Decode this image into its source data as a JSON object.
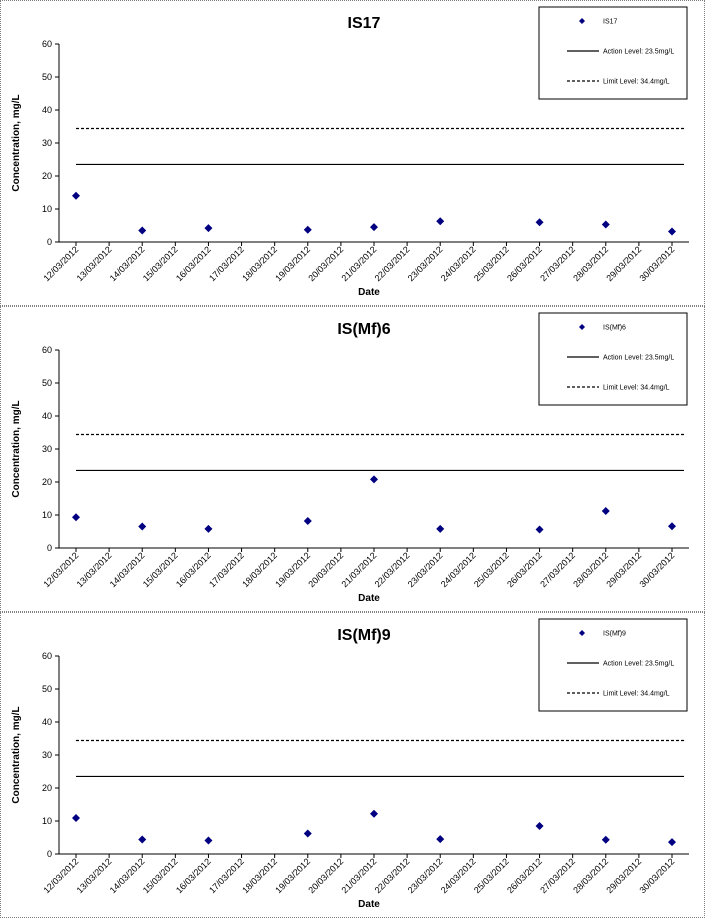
{
  "colors": {
    "marker": "#000080",
    "axis": "#000000",
    "action_line": "#000000",
    "limit_line": "#000000"
  },
  "chart_data": [
    {
      "type": "scatter",
      "title": "IS17",
      "xlabel": "Date",
      "ylabel": "Concentration, mg/L",
      "ylim": [
        0,
        60
      ],
      "yticks": [
        0,
        10,
        20,
        30,
        40,
        50,
        60
      ],
      "x_categories": [
        "12/03/2012",
        "13/03/2012",
        "14/03/2012",
        "15/03/2012",
        "16/03/2012",
        "17/03/2012",
        "18/03/2012",
        "19/03/2012",
        "20/03/2012",
        "21/03/2012",
        "22/03/2012",
        "23/03/2012",
        "24/03/2012",
        "25/03/2012",
        "26/03/2012",
        "27/03/2012",
        "28/03/2012",
        "29/03/2012",
        "30/03/2012"
      ],
      "series": [
        {
          "name": "IS17",
          "x": [
            "12/03/2012",
            "14/03/2012",
            "16/03/2012",
            "19/03/2012",
            "21/03/2012",
            "23/03/2012",
            "26/03/2012",
            "28/03/2012",
            "30/03/2012"
          ],
          "y": [
            14,
            3.5,
            4.2,
            3.7,
            4.5,
            6.3,
            6,
            5.3,
            3.2
          ]
        }
      ],
      "reference_lines": [
        {
          "name": "Action Level: 23.5mg/L",
          "value": 23.5,
          "style": "solid"
        },
        {
          "name": "Limit Level: 34.4mg/L",
          "value": 34.4,
          "style": "dashed"
        }
      ],
      "legend": {
        "position": "top-right",
        "entries": [
          "IS17",
          "Action Level: 23.5mg/L",
          "Limit Level: 34.4mg/L"
        ]
      }
    },
    {
      "type": "scatter",
      "title": "IS(Mf)6",
      "xlabel": "Date",
      "ylabel": "Concentration, mg/L",
      "ylim": [
        0,
        60
      ],
      "yticks": [
        0,
        10,
        20,
        30,
        40,
        50,
        60
      ],
      "x_categories": [
        "12/03/2012",
        "13/03/2012",
        "14/03/2012",
        "15/03/2012",
        "16/03/2012",
        "17/03/2012",
        "18/03/2012",
        "19/03/2012",
        "20/03/2012",
        "21/03/2012",
        "22/03/2012",
        "23/03/2012",
        "24/03/2012",
        "25/03/2012",
        "26/03/2012",
        "27/03/2012",
        "28/03/2012",
        "29/03/2012",
        "30/03/2012"
      ],
      "series": [
        {
          "name": "IS(Mf)6",
          "x": [
            "12/03/2012",
            "14/03/2012",
            "16/03/2012",
            "19/03/2012",
            "21/03/2012",
            "23/03/2012",
            "26/03/2012",
            "28/03/2012",
            "30/03/2012"
          ],
          "y": [
            9.3,
            6.5,
            5.8,
            8.2,
            20.8,
            5.8,
            5.6,
            11.2,
            6.6
          ]
        }
      ],
      "reference_lines": [
        {
          "name": "Action Level: 23.5mg/L",
          "value": 23.5,
          "style": "solid"
        },
        {
          "name": "Limit Level: 34.4mg/L",
          "value": 34.4,
          "style": "dashed"
        }
      ],
      "legend": {
        "position": "top-right",
        "entries": [
          "IS(Mf)6",
          "Action Level: 23.5mg/L",
          "Limit Level: 34.4mg/L"
        ]
      }
    },
    {
      "type": "scatter",
      "title": "IS(Mf)9",
      "xlabel": "Date",
      "ylabel": "Concentration, mg/L",
      "ylim": [
        0,
        60
      ],
      "yticks": [
        0,
        10,
        20,
        30,
        40,
        50,
        60
      ],
      "x_categories": [
        "12/03/2012",
        "13/03/2012",
        "14/03/2012",
        "15/03/2012",
        "16/03/2012",
        "17/03/2012",
        "18/03/2012",
        "19/03/2012",
        "20/03/2012",
        "21/03/2012",
        "22/03/2012",
        "23/03/2012",
        "24/03/2012",
        "25/03/2012",
        "26/03/2012",
        "27/03/2012",
        "28/03/2012",
        "29/03/2012",
        "30/03/2012"
      ],
      "series": [
        {
          "name": "IS(Mf)9",
          "x": [
            "12/03/2012",
            "14/03/2012",
            "16/03/2012",
            "19/03/2012",
            "21/03/2012",
            "23/03/2012",
            "26/03/2012",
            "28/03/2012",
            "30/03/2012"
          ],
          "y": [
            10.9,
            4.4,
            4.1,
            6.2,
            12.2,
            4.5,
            8.5,
            4.3,
            3.6
          ]
        }
      ],
      "reference_lines": [
        {
          "name": "Action Level: 23.5mg/L",
          "value": 23.5,
          "style": "solid"
        },
        {
          "name": "Limit Level: 34.4mg/L",
          "value": 34.4,
          "style": "dashed"
        }
      ],
      "legend": {
        "position": "top-right",
        "entries": [
          "IS(Mf)9",
          "Action Level: 23.5mg/L",
          "Limit Level: 34.4mg/L"
        ]
      }
    }
  ]
}
